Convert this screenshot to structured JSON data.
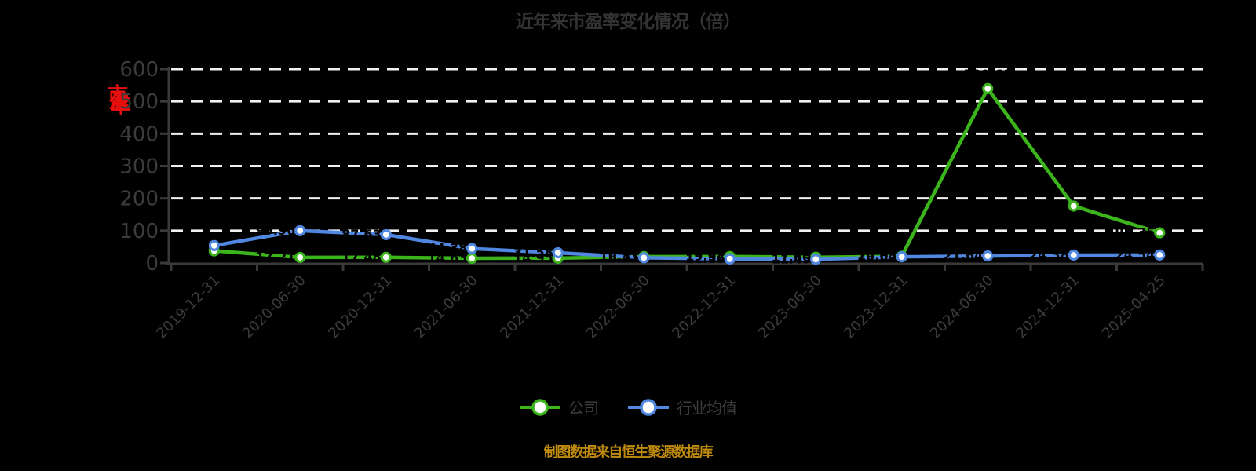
{
  "title": "近年来市盈率变化情况（倍）",
  "y_axis_unit_label": {
    "text": "市盈率",
    "color": "#e60f0f"
  },
  "legend": {
    "items": [
      {
        "label": "公司"
      },
      {
        "label": "行业均值"
      }
    ]
  },
  "footer": {
    "note": "制图数据来自恒生聚源数据库",
    "color": "#bd8a0e"
  },
  "colors": {
    "background": "#000000",
    "title_text": "#333333",
    "axis_text": "#3c3c3c",
    "axis_line": "#3a3a3a",
    "gridline": "#f0f0f0",
    "value_label": "#000000",
    "marker_fill": "#ffffff",
    "company_green": "#3cb41c",
    "industry_blue": "#5087e0"
  },
  "chart_data": {
    "type": "line",
    "title": "近年来市盈率变化情况（倍）",
    "categories": [
      "2019-12-31",
      "2020-06-30",
      "2020-12-31",
      "2021-06-30",
      "2021-12-31",
      "2022-06-30",
      "2022-12-31",
      "2023-06-30",
      "2023-12-31",
      "2024-06-30",
      "2024-12-31",
      "2025-04-25"
    ],
    "series": [
      {
        "name": "公司",
        "color": "#3cb41c",
        "values": [
          37.54,
          17.21,
          17.48,
          14.63,
          14.95,
          19.83,
          19.92,
          17.6,
          20.85,
          539.61,
          176.18,
          93.35
        ]
      },
      {
        "name": "行业均值",
        "color": "#5087e0",
        "values": [
          53.9,
          99.96,
          87.63,
          44.38,
          31.58,
          16.21,
          12.56,
          11.45,
          19.04,
          21.64,
          24.38,
          24.54
        ]
      }
    ],
    "xlabel": "",
    "ylabel": "市盈率",
    "ylim": [
      0,
      600
    ],
    "y_ticks": [
      0,
      100,
      200,
      300,
      400,
      500,
      600
    ],
    "grid": "horizontal-dashed-white",
    "legend_position": "bottom",
    "marker": "circle-white-fill",
    "value_labels": "black-on-black (visible only where overlapping lines)"
  }
}
